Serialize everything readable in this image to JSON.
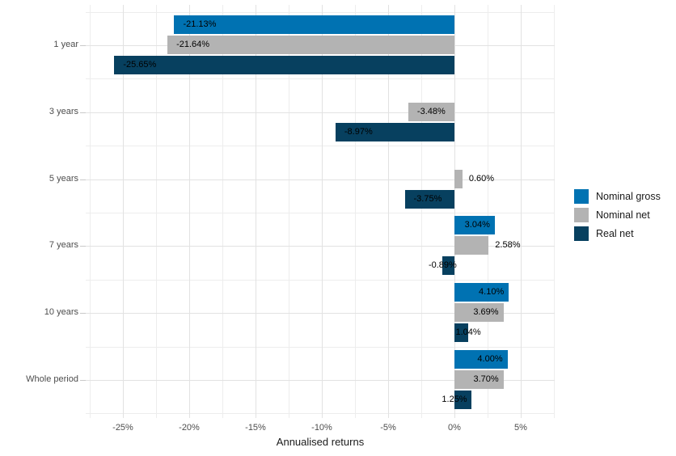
{
  "chart_data": {
    "type": "bar",
    "orientation": "horizontal",
    "title": "",
    "xlabel": "Annualised returns",
    "ylabel": "",
    "xlim": [
      -27.8,
      7.56
    ],
    "grid": {
      "major": true,
      "minor": true
    },
    "x_ticks": [
      {
        "value": -25,
        "label": "-25%"
      },
      {
        "value": -20,
        "label": "-20%"
      },
      {
        "value": -15,
        "label": "-15%"
      },
      {
        "value": -10,
        "label": "-10%"
      },
      {
        "value": -5,
        "label": "-5%"
      },
      {
        "value": 0,
        "label": "0%"
      },
      {
        "value": 5,
        "label": "5%"
      }
    ],
    "categories": [
      "1 year",
      "3 years",
      "5 years",
      "7 years",
      "10 years",
      "Whole period"
    ],
    "series": [
      {
        "name": "Nominal gross",
        "color": "#0072B2",
        "values": [
          -21.13,
          null,
          null,
          3.04,
          4.1,
          4.0
        ],
        "labels": [
          "-21.13%",
          null,
          null,
          "3.04%",
          "4.10%",
          "4.00%"
        ],
        "label_pos": [
          "in-left",
          null,
          null,
          "in-right",
          "in-right",
          "in-right"
        ]
      },
      {
        "name": "Nominal net",
        "color": "#B3B3B3",
        "values": [
          -21.64,
          -3.48,
          0.6,
          2.58,
          3.69,
          3.7
        ],
        "labels": [
          "-21.64%",
          "-3.48%",
          "0.60%",
          "2.58%",
          "3.69%",
          "3.70%"
        ],
        "label_pos": [
          "in-left",
          "in-left",
          "out-right",
          "out-right",
          "in-right",
          "in-right"
        ]
      },
      {
        "name": "Real net",
        "color": "#07405F",
        "values": [
          -25.65,
          -8.97,
          -3.75,
          -0.89,
          1.04,
          1.25
        ],
        "labels": [
          "-25.65%",
          "-8.97%",
          "-3.75%",
          "-0.89%",
          "1.04%",
          "1.25%"
        ],
        "label_pos": [
          "in-left",
          "in-left",
          "in-left",
          "mid-left",
          "mid-right",
          "mid-zero"
        ]
      }
    ],
    "legend": {
      "position": "right",
      "items": [
        "Nominal gross",
        "Nominal net",
        "Real net"
      ]
    }
  }
}
